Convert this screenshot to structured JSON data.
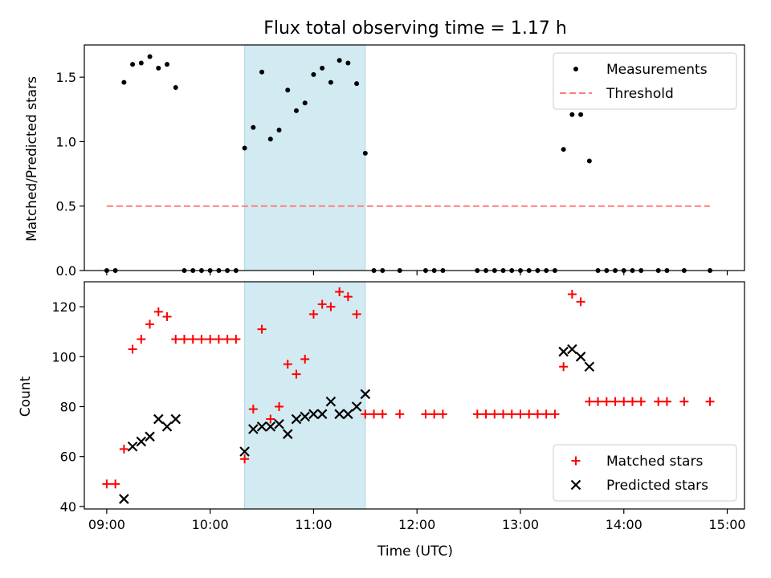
{
  "figure": {
    "title": "Flux total observing time = 1.17 h"
  },
  "chart_data": [
    {
      "type": "scatter",
      "name": "top-panel",
      "ylabel": "Matched/Predicted stars",
      "xlim": [
        "08:47",
        "15:10"
      ],
      "ylim": [
        0,
        1.75
      ],
      "x_ticks": [
        "09:00",
        "10:00",
        "11:00",
        "12:00",
        "13:00",
        "14:00",
        "15:00"
      ],
      "y_ticks": [
        0.0,
        0.5,
        1.0,
        1.5
      ],
      "y_tick_labels": [
        "0.0",
        "0.5",
        "1.0",
        "1.5"
      ],
      "legend_position": "top-right",
      "highlight_span": {
        "start": "10:20",
        "end": "11:30",
        "color": "#add8e6"
      },
      "series": [
        {
          "name": "Measurements",
          "marker": "dot",
          "color": "#000000",
          "points": [
            [
              "09:00",
              0.0
            ],
            [
              "09:05",
              0.0
            ],
            [
              "09:10",
              1.46
            ],
            [
              "09:15",
              1.6
            ],
            [
              "09:20",
              1.61
            ],
            [
              "09:25",
              1.66
            ],
            [
              "09:30",
              1.57
            ],
            [
              "09:35",
              1.6
            ],
            [
              "09:40",
              1.42
            ],
            [
              "09:45",
              0.0
            ],
            [
              "09:50",
              0.0
            ],
            [
              "09:55",
              0.0
            ],
            [
              "10:00",
              0.0
            ],
            [
              "10:05",
              0.0
            ],
            [
              "10:10",
              0.0
            ],
            [
              "10:15",
              0.0
            ],
            [
              "10:20",
              0.95
            ],
            [
              "10:25",
              1.11
            ],
            [
              "10:30",
              1.54
            ],
            [
              "10:35",
              1.02
            ],
            [
              "10:40",
              1.09
            ],
            [
              "10:45",
              1.4
            ],
            [
              "10:50",
              1.24
            ],
            [
              "10:55",
              1.3
            ],
            [
              "11:00",
              1.52
            ],
            [
              "11:05",
              1.57
            ],
            [
              "11:10",
              1.46
            ],
            [
              "11:15",
              1.63
            ],
            [
              "11:20",
              1.61
            ],
            [
              "11:25",
              1.45
            ],
            [
              "11:30",
              0.91
            ],
            [
              "11:35",
              0.0
            ],
            [
              "11:40",
              0.0
            ],
            [
              "11:50",
              0.0
            ],
            [
              "12:05",
              0.0
            ],
            [
              "12:10",
              0.0
            ],
            [
              "12:15",
              0.0
            ],
            [
              "12:35",
              0.0
            ],
            [
              "12:40",
              0.0
            ],
            [
              "12:45",
              0.0
            ],
            [
              "12:50",
              0.0
            ],
            [
              "12:55",
              0.0
            ],
            [
              "13:00",
              0.0
            ],
            [
              "13:05",
              0.0
            ],
            [
              "13:10",
              0.0
            ],
            [
              "13:15",
              0.0
            ],
            [
              "13:20",
              0.0
            ],
            [
              "13:25",
              0.94
            ],
            [
              "13:30",
              1.21
            ],
            [
              "13:35",
              1.21
            ],
            [
              "13:40",
              0.85
            ],
            [
              "13:45",
              0.0
            ],
            [
              "13:50",
              0.0
            ],
            [
              "13:55",
              0.0
            ],
            [
              "14:00",
              0.0
            ],
            [
              "14:05",
              0.0
            ],
            [
              "14:10",
              0.0
            ],
            [
              "14:20",
              0.0
            ],
            [
              "14:25",
              0.0
            ],
            [
              "14:35",
              0.0
            ],
            [
              "14:50",
              0.0
            ]
          ]
        },
        {
          "name": "Threshold",
          "marker": "dashed-line",
          "color": "#ff7f7f",
          "points": [
            [
              "09:00",
              0.5
            ],
            [
              "14:50",
              0.5
            ]
          ]
        }
      ]
    },
    {
      "type": "scatter",
      "name": "bottom-panel",
      "xlabel": "Time (UTC)",
      "ylabel": "Count",
      "xlim": [
        "08:47",
        "15:10"
      ],
      "ylim": [
        39,
        130
      ],
      "x_ticks": [
        "09:00",
        "10:00",
        "11:00",
        "12:00",
        "13:00",
        "14:00",
        "15:00"
      ],
      "y_ticks": [
        40,
        60,
        80,
        100,
        120
      ],
      "y_tick_labels": [
        "40",
        "60",
        "80",
        "100",
        "120"
      ],
      "legend_position": "bottom-right",
      "highlight_span": {
        "start": "10:20",
        "end": "11:30",
        "color": "#add8e6"
      },
      "series": [
        {
          "name": "Matched stars",
          "marker": "plus",
          "color": "#ff0000",
          "points": [
            [
              "09:00",
              49
            ],
            [
              "09:05",
              49
            ],
            [
              "09:10",
              63
            ],
            [
              "09:15",
              103
            ],
            [
              "09:20",
              107
            ],
            [
              "09:25",
              113
            ],
            [
              "09:30",
              118
            ],
            [
              "09:35",
              116
            ],
            [
              "09:40",
              107
            ],
            [
              "09:45",
              107
            ],
            [
              "09:50",
              107
            ],
            [
              "09:55",
              107
            ],
            [
              "10:00",
              107
            ],
            [
              "10:05",
              107
            ],
            [
              "10:10",
              107
            ],
            [
              "10:15",
              107
            ],
            [
              "10:20",
              59
            ],
            [
              "10:25",
              79
            ],
            [
              "10:30",
              111
            ],
            [
              "10:35",
              75
            ],
            [
              "10:40",
              80
            ],
            [
              "10:45",
              97
            ],
            [
              "10:50",
              93
            ],
            [
              "10:55",
              99
            ],
            [
              "11:00",
              117
            ],
            [
              "11:05",
              121
            ],
            [
              "11:10",
              120
            ],
            [
              "11:15",
              126
            ],
            [
              "11:20",
              124
            ],
            [
              "11:25",
              117
            ],
            [
              "11:30",
              77
            ],
            [
              "11:35",
              77
            ],
            [
              "11:40",
              77
            ],
            [
              "11:50",
              77
            ],
            [
              "12:05",
              77
            ],
            [
              "12:10",
              77
            ],
            [
              "12:15",
              77
            ],
            [
              "12:35",
              77
            ],
            [
              "12:40",
              77
            ],
            [
              "12:45",
              77
            ],
            [
              "12:50",
              77
            ],
            [
              "12:55",
              77
            ],
            [
              "13:00",
              77
            ],
            [
              "13:05",
              77
            ],
            [
              "13:10",
              77
            ],
            [
              "13:15",
              77
            ],
            [
              "13:20",
              77
            ],
            [
              "13:25",
              96
            ],
            [
              "13:30",
              125
            ],
            [
              "13:35",
              122
            ],
            [
              "13:40",
              82
            ],
            [
              "13:45",
              82
            ],
            [
              "13:50",
              82
            ],
            [
              "13:55",
              82
            ],
            [
              "14:00",
              82
            ],
            [
              "14:05",
              82
            ],
            [
              "14:10",
              82
            ],
            [
              "14:20",
              82
            ],
            [
              "14:25",
              82
            ],
            [
              "14:35",
              82
            ],
            [
              "14:50",
              82
            ]
          ]
        },
        {
          "name": "Predicted stars",
          "marker": "x",
          "color": "#000000",
          "points": [
            [
              "09:10",
              43
            ],
            [
              "09:15",
              64
            ],
            [
              "09:20",
              66
            ],
            [
              "09:25",
              68
            ],
            [
              "09:30",
              75
            ],
            [
              "09:35",
              72
            ],
            [
              "09:40",
              75
            ],
            [
              "10:20",
              62
            ],
            [
              "10:25",
              71
            ],
            [
              "10:30",
              72
            ],
            [
              "10:35",
              72
            ],
            [
              "10:40",
              73
            ],
            [
              "10:45",
              69
            ],
            [
              "10:50",
              75
            ],
            [
              "10:55",
              76
            ],
            [
              "11:00",
              77
            ],
            [
              "11:05",
              77
            ],
            [
              "11:10",
              82
            ],
            [
              "11:15",
              77
            ],
            [
              "11:20",
              77
            ],
            [
              "11:25",
              80
            ],
            [
              "11:30",
              85
            ],
            [
              "13:25",
              102
            ],
            [
              "13:30",
              103
            ],
            [
              "13:35",
              100
            ],
            [
              "13:40",
              96
            ]
          ]
        }
      ]
    }
  ]
}
